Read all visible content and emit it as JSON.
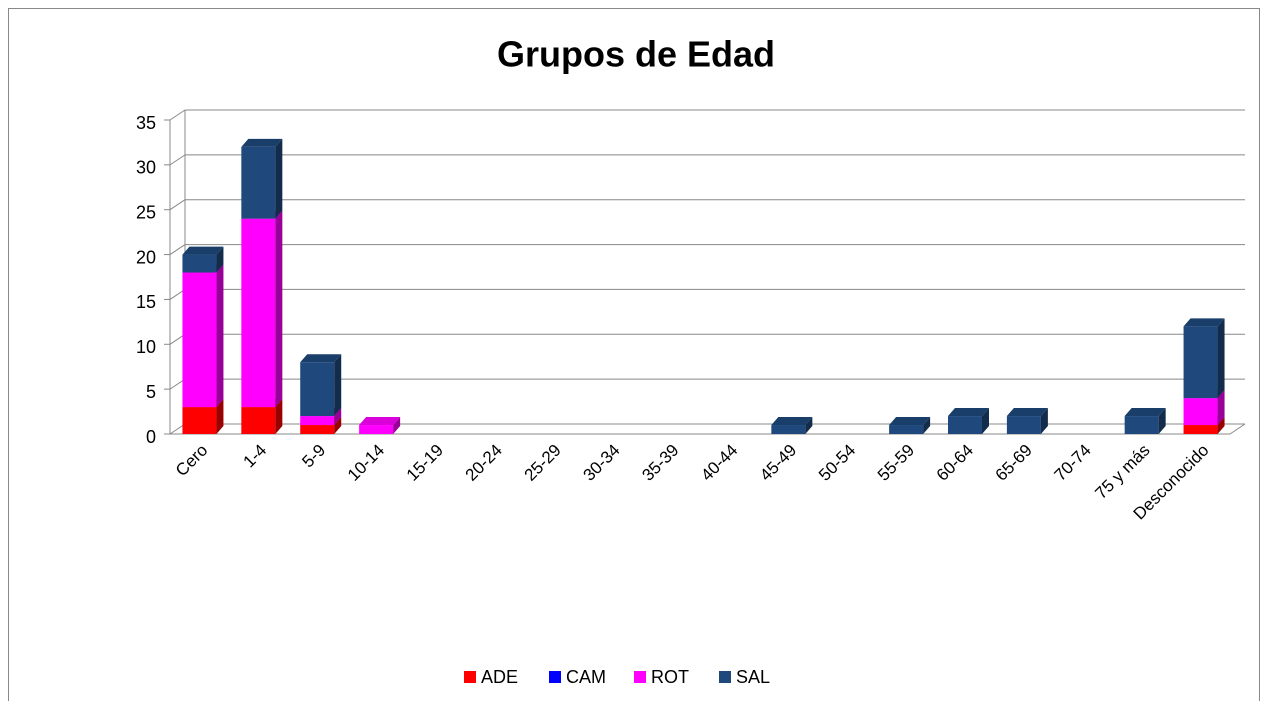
{
  "chart_data": {
    "type": "bar3d_stacked",
    "title": "Grupos de Edad",
    "categories": [
      "Cero",
      "1-4",
      "5-9",
      "10-14",
      "15-19",
      "20-24",
      "25-29",
      "30-34",
      "35-39",
      "40-44",
      "45-49",
      "50-54",
      "55-59",
      "60-64",
      "65-69",
      "70-74",
      "75 y más",
      "Desconocido"
    ],
    "series": [
      {
        "name": "ADE",
        "color": "#ff0000",
        "values": [
          3,
          3,
          1,
          0,
          0,
          0,
          0,
          0,
          0,
          0,
          0,
          0,
          0,
          0,
          0,
          0,
          0,
          1
        ]
      },
      {
        "name": "CAM",
        "color": "#0000ff",
        "values": [
          0,
          0,
          0,
          0,
          0,
          0,
          0,
          0,
          0,
          0,
          0,
          0,
          0,
          0,
          0,
          0,
          0,
          0
        ]
      },
      {
        "name": "ROT",
        "color": "#ff00ff",
        "values": [
          15,
          21,
          1,
          1,
          0,
          0,
          0,
          0,
          0,
          0,
          0,
          0,
          0,
          0,
          0,
          0,
          0,
          3
        ]
      },
      {
        "name": "SAL",
        "color": "#1f497d",
        "values": [
          2,
          8,
          6,
          0,
          0,
          0,
          0,
          0,
          0,
          0,
          1,
          0,
          1,
          2,
          2,
          0,
          2,
          8
        ]
      }
    ],
    "ylim": [
      0,
      35
    ],
    "yticks": [
      0,
      5,
      10,
      15,
      20,
      25,
      30,
      35
    ],
    "grid": true,
    "legend": "bottom"
  }
}
